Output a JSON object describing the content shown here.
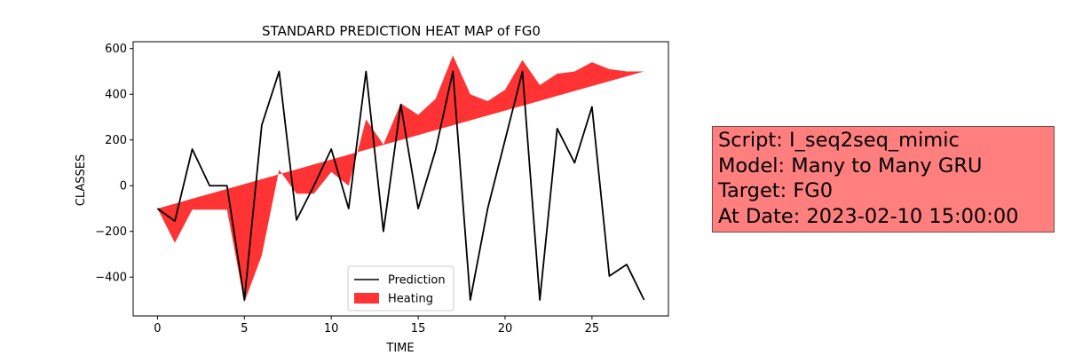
{
  "chart_data": {
    "type": "line",
    "title": "STANDARD PREDICTION HEAT MAP of FG0",
    "xlabel": "TIME",
    "ylabel": "CLASSES",
    "xlim": [
      -1.4,
      29.4
    ],
    "ylim": [
      -570,
      630
    ],
    "xticks": [
      0,
      5,
      10,
      15,
      20,
      25
    ],
    "yticks": [
      -400,
      -200,
      0,
      200,
      400,
      600
    ],
    "grid": false,
    "legend_position": "lower-center",
    "series": [
      {
        "name": "Prediction",
        "kind": "line",
        "color": "#000000",
        "x": [
          0,
          1,
          2,
          3,
          4,
          5,
          6,
          7,
          8,
          9,
          10,
          11,
          12,
          13,
          14,
          15,
          16,
          17,
          18,
          19,
          20,
          21,
          22,
          23,
          24,
          25,
          26,
          27,
          28
        ],
        "y": [
          -100,
          -155,
          160,
          0,
          0,
          -500,
          265,
          500,
          -150,
          0,
          160,
          -100,
          500,
          -200,
          355,
          -100,
          155,
          500,
          -500,
          -100,
          200,
          500,
          -500,
          250,
          100,
          345,
          -395,
          -345,
          -500
        ]
      },
      {
        "name": "Heating",
        "kind": "fill_between",
        "color": "#ff0000",
        "opacity": 0.8,
        "x": [
          0,
          1,
          2,
          3,
          4,
          5,
          6,
          7,
          8,
          9,
          10,
          11,
          12,
          13,
          14,
          15,
          16,
          17,
          18,
          19,
          20,
          21,
          22,
          23,
          24,
          25,
          26,
          27,
          28
        ],
        "y1": [
          -100,
          -250,
          -105,
          -105,
          -105,
          -510,
          -305,
          70,
          -35,
          -35,
          60,
          0,
          290,
          180,
          360,
          310,
          380,
          570,
          400,
          370,
          420,
          550,
          440,
          490,
          500,
          540,
          510,
          500,
          500
        ],
        "y2": [
          -100,
          -78.6,
          -57.1,
          -35.7,
          -14.3,
          7.1,
          28.6,
          50,
          71.4,
          92.9,
          114.3,
          135.7,
          157.1,
          178.6,
          200,
          221.4,
          242.9,
          264.3,
          285.7,
          307.1,
          328.6,
          350,
          371.4,
          392.9,
          414.3,
          435.7,
          457.1,
          478.6,
          500
        ]
      }
    ]
  },
  "info_box": {
    "lines": [
      "Script: I_seq2seq_mimic",
      "Model: Many to Many GRU",
      "Target: FG0",
      "At Date: 2023-02-10 15:00:00"
    ],
    "background": "#ff7f7f"
  }
}
